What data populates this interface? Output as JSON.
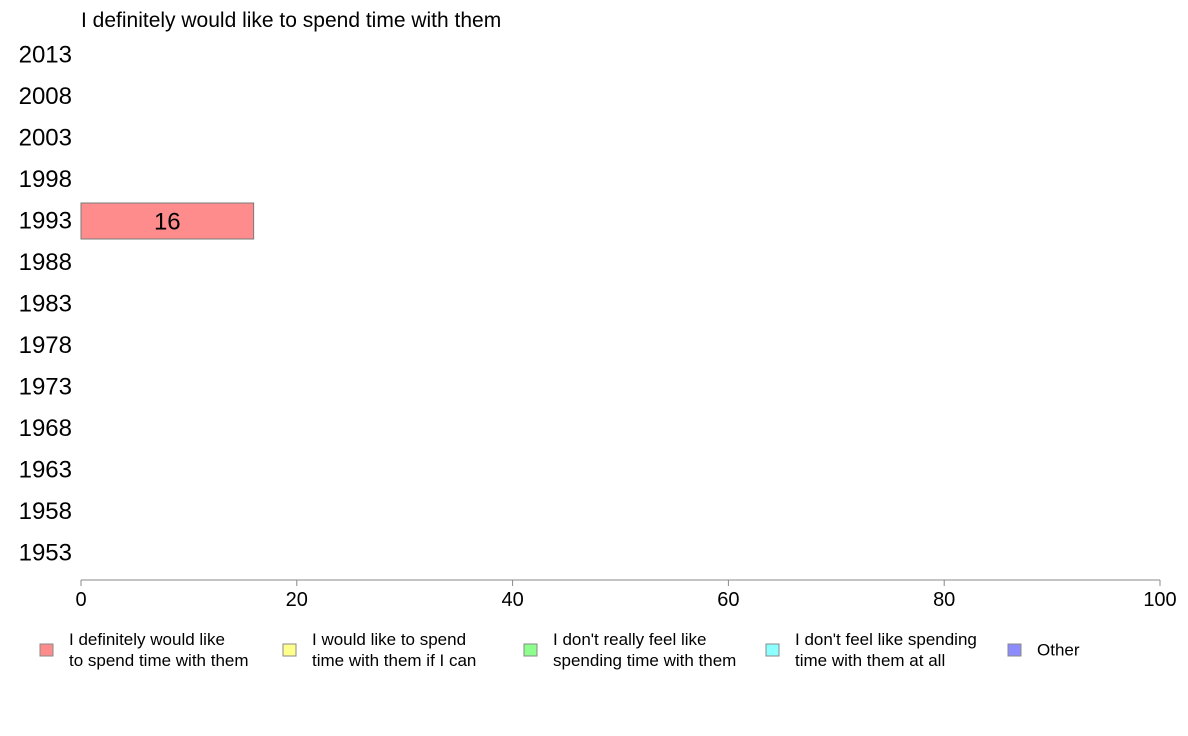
{
  "chart_data": {
    "type": "bar",
    "orientation": "horizontal",
    "title": "I definitely would like to spend time with them",
    "categories": [
      "2013",
      "2008",
      "2003",
      "1998",
      "1993",
      "1988",
      "1983",
      "1978",
      "1973",
      "1968",
      "1963",
      "1958",
      "1953"
    ],
    "series": [
      {
        "name": "I definitely would like to spend time with them",
        "color": "#ff8c8c",
        "values": [
          null,
          null,
          null,
          null,
          16,
          null,
          null,
          null,
          null,
          null,
          null,
          null,
          null
        ],
        "data_labels": [
          "",
          "",
          "",
          "",
          "16",
          "",
          "",
          "",
          "",
          "",
          "",
          "",
          ""
        ]
      }
    ],
    "xlim": [
      0,
      100
    ],
    "xticks": [
      "0",
      "20",
      "40",
      "60",
      "80",
      "100"
    ],
    "grid": false,
    "legend": {
      "placement": "bottom",
      "items": [
        {
          "lines": [
            "I definitely would like",
            "to spend time with them"
          ],
          "color": "#ff8c8c"
        },
        {
          "lines": [
            "I would like to spend",
            "time with them if I can"
          ],
          "color": "#ffff8c"
        },
        {
          "lines": [
            "I don't really feel like",
            "spending time with them"
          ],
          "color": "#8cff8c"
        },
        {
          "lines": [
            "I don't feel like spending",
            "time with them at all"
          ],
          "color": "#8cffff"
        },
        {
          "lines": [
            "Other"
          ],
          "color": "#8c8cff"
        }
      ]
    }
  }
}
